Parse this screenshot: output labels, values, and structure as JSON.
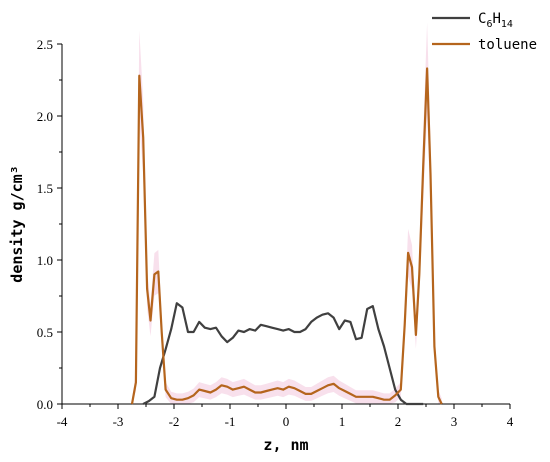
{
  "chart_data": {
    "type": "line",
    "xlabel": "z, nm",
    "ylabel": "density g/cm³",
    "xlim": [
      -4,
      4
    ],
    "ylim": [
      0,
      2.5
    ],
    "xticks": [
      "-4",
      "-3",
      "-2",
      "-1",
      "0",
      "1",
      "2",
      "3",
      "4"
    ],
    "yticks": [
      "0.0",
      "0.5",
      "1.0",
      "1.5",
      "2.0",
      "2.5"
    ],
    "legend_position": "top-right",
    "series": [
      {
        "name": "C6H14",
        "color": "#404040",
        "x": [
          -2.55,
          -2.45,
          -2.35,
          -2.25,
          -2.15,
          -2.05,
          -1.95,
          -1.85,
          -1.75,
          -1.65,
          -1.55,
          -1.45,
          -1.35,
          -1.25,
          -1.15,
          -1.05,
          -0.95,
          -0.85,
          -0.75,
          -0.65,
          -0.55,
          -0.45,
          -0.35,
          -0.25,
          -0.15,
          -0.05,
          0.05,
          0.15,
          0.25,
          0.35,
          0.45,
          0.55,
          0.65,
          0.75,
          0.85,
          0.95,
          1.05,
          1.15,
          1.25,
          1.35,
          1.45,
          1.55,
          1.65,
          1.75,
          1.85,
          1.95,
          2.05,
          2.15,
          2.25,
          2.35,
          2.45
        ],
        "y": [
          0.0,
          0.02,
          0.05,
          0.25,
          0.38,
          0.52,
          0.7,
          0.67,
          0.5,
          0.5,
          0.57,
          0.53,
          0.52,
          0.53,
          0.47,
          0.43,
          0.46,
          0.51,
          0.5,
          0.52,
          0.51,
          0.55,
          0.54,
          0.53,
          0.52,
          0.51,
          0.52,
          0.5,
          0.5,
          0.52,
          0.57,
          0.6,
          0.62,
          0.63,
          0.6,
          0.52,
          0.58,
          0.57,
          0.45,
          0.46,
          0.66,
          0.68,
          0.52,
          0.4,
          0.25,
          0.1,
          0.03,
          0.0,
          0.0,
          0.0,
          0.0
        ]
      },
      {
        "name": "toluene",
        "color": "#b5651d",
        "x": [
          -2.75,
          -2.68,
          -2.62,
          -2.55,
          -2.48,
          -2.42,
          -2.35,
          -2.28,
          -2.22,
          -2.15,
          -2.05,
          -1.95,
          -1.85,
          -1.75,
          -1.65,
          -1.55,
          -1.45,
          -1.35,
          -1.25,
          -1.15,
          -1.05,
          -0.95,
          -0.85,
          -0.75,
          -0.65,
          -0.55,
          -0.45,
          -0.35,
          -0.25,
          -0.15,
          -0.05,
          0.05,
          0.15,
          0.25,
          0.35,
          0.45,
          0.55,
          0.65,
          0.75,
          0.85,
          0.95,
          1.05,
          1.15,
          1.25,
          1.35,
          1.45,
          1.55,
          1.65,
          1.75,
          1.85,
          1.95,
          2.05,
          2.12,
          2.18,
          2.25,
          2.32,
          2.38,
          2.45,
          2.52,
          2.58,
          2.65,
          2.72,
          2.78
        ],
        "y": [
          0.0,
          0.15,
          2.28,
          1.85,
          0.8,
          0.58,
          0.9,
          0.92,
          0.5,
          0.1,
          0.04,
          0.03,
          0.03,
          0.04,
          0.06,
          0.1,
          0.09,
          0.08,
          0.1,
          0.13,
          0.12,
          0.1,
          0.11,
          0.12,
          0.1,
          0.08,
          0.08,
          0.09,
          0.1,
          0.11,
          0.1,
          0.12,
          0.11,
          0.09,
          0.07,
          0.07,
          0.09,
          0.11,
          0.13,
          0.14,
          0.11,
          0.09,
          0.07,
          0.05,
          0.05,
          0.05,
          0.05,
          0.04,
          0.03,
          0.03,
          0.06,
          0.1,
          0.55,
          1.05,
          0.95,
          0.48,
          0.9,
          1.65,
          2.33,
          1.6,
          0.4,
          0.05,
          0.0
        ]
      }
    ]
  }
}
